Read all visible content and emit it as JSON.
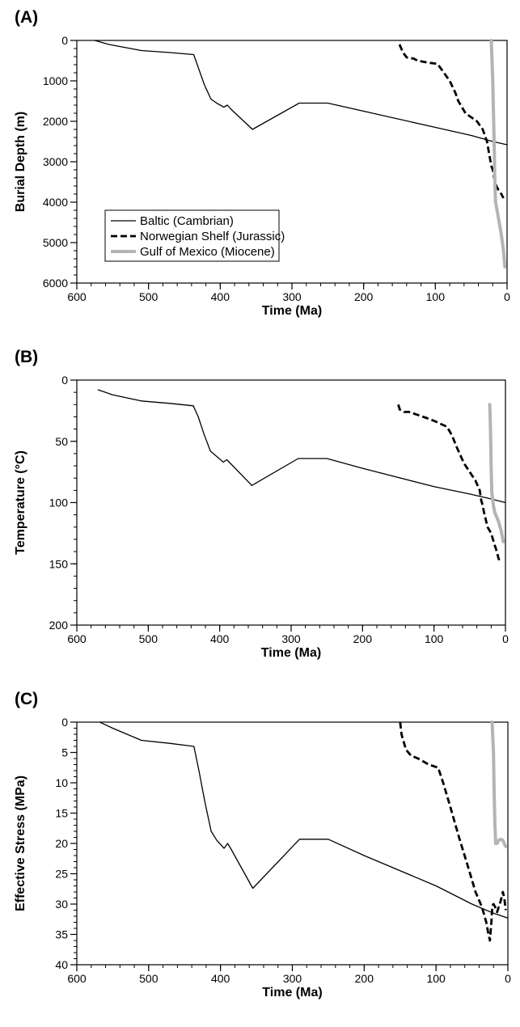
{
  "chart_data": [
    {
      "type": "line",
      "panel_label": "(A)",
      "xlabel": "Time (Ma)",
      "ylabel": "Burial Depth (m)",
      "xlim": [
        600,
        0
      ],
      "ylim": [
        6000,
        0
      ],
      "x_reversed": true,
      "y_reversed": true,
      "xticks": [
        600,
        500,
        400,
        300,
        200,
        100,
        0
      ],
      "yticks": [
        0,
        1000,
        2000,
        3000,
        4000,
        5000,
        6000
      ],
      "x_minor_step": 20,
      "y_minor_step": 200,
      "legend": {
        "position": "lower-left",
        "entries": [
          "Baltic (Cambrian)",
          "Norwegian Shelf (Jurassic)",
          "Gulf of Mexico (Miocene)"
        ]
      },
      "series": [
        {
          "name": "Baltic (Cambrian)",
          "color": "#000000",
          "style": "solid",
          "x": [
            575,
            555,
            510,
            470,
            437,
            430,
            422,
            413,
            405,
            395,
            390,
            385,
            355,
            290,
            250,
            200,
            100,
            50,
            20,
            0
          ],
          "y": [
            0,
            100,
            250,
            300,
            350,
            700,
            1100,
            1450,
            1550,
            1650,
            1600,
            1700,
            2200,
            1550,
            1550,
            1750,
            2150,
            2350,
            2500,
            2580
          ]
        },
        {
          "name": "Norwegian Shelf (Jurassic)",
          "color": "#000000",
          "style": "dashed",
          "x": [
            150,
            145,
            140,
            130,
            125,
            110,
            97,
            90,
            80,
            72,
            68,
            58,
            50,
            42,
            34,
            28,
            25,
            22,
            20,
            18,
            15,
            12,
            8,
            5
          ],
          "y": [
            100,
            300,
            420,
            450,
            500,
            550,
            580,
            750,
            1000,
            1300,
            1500,
            1800,
            1900,
            2000,
            2200,
            2500,
            2800,
            3100,
            3200,
            3400,
            3600,
            3700,
            3800,
            3900
          ]
        },
        {
          "name": "Gulf of Mexico (Miocene)",
          "color": "#b4b4b4",
          "style": "solid",
          "x": [
            22,
            20,
            18,
            17,
            16,
            12,
            8,
            5,
            3
          ],
          "y": [
            0,
            1000,
            2500,
            3500,
            4000,
            4400,
            4800,
            5200,
            5600
          ]
        }
      ]
    },
    {
      "type": "line",
      "panel_label": "(B)",
      "xlabel": "Time (Ma)",
      "ylabel": "Temperature (°C)",
      "xlim": [
        600,
        0
      ],
      "ylim": [
        200,
        0
      ],
      "x_reversed": true,
      "y_reversed": true,
      "xticks": [
        600,
        500,
        400,
        300,
        200,
        100,
        0
      ],
      "yticks": [
        0,
        50,
        100,
        150,
        200
      ],
      "x_minor_step": 20,
      "y_minor_step": 10,
      "series": [
        {
          "name": "Baltic (Cambrian)",
          "color": "#000000",
          "style": "solid",
          "x": [
            570,
            550,
            510,
            470,
            437,
            430,
            422,
            413,
            405,
            395,
            390,
            385,
            355,
            290,
            250,
            200,
            100,
            50,
            20,
            0
          ],
          "y": [
            8,
            12,
            17,
            19,
            21,
            30,
            44,
            58,
            62,
            67,
            65,
            68,
            86,
            64,
            64,
            72,
            87,
            93,
            97,
            100
          ]
        },
        {
          "name": "Norwegian Shelf (Jurassic)",
          "color": "#000000",
          "style": "dashed",
          "x": [
            150,
            148,
            142,
            135,
            125,
            110,
            97,
            90,
            82,
            75,
            68,
            58,
            50,
            42,
            36,
            34,
            32,
            30,
            25,
            20,
            15,
            12,
            10,
            8
          ],
          "y": [
            20,
            24,
            26,
            26,
            28,
            31,
            34,
            36,
            38,
            45,
            55,
            68,
            75,
            82,
            90,
            98,
            102,
            108,
            120,
            125,
            135,
            140,
            145,
            148
          ]
        },
        {
          "name": "Gulf of Mexico (Miocene)",
          "color": "#b4b4b4",
          "style": "solid",
          "x": [
            22,
            21,
            20,
            19,
            17,
            15,
            10,
            6,
            3
          ],
          "y": [
            20,
            40,
            70,
            92,
            102,
            108,
            115,
            123,
            132
          ]
        }
      ]
    },
    {
      "type": "line",
      "panel_label": "(C)",
      "xlabel": "Time (Ma)",
      "ylabel": "Effective Stress (MPa)",
      "xlim": [
        600,
        0
      ],
      "ylim": [
        40,
        0
      ],
      "x_reversed": true,
      "y_reversed": true,
      "xticks": [
        600,
        500,
        400,
        300,
        200,
        100,
        0
      ],
      "yticks": [
        0,
        5,
        10,
        15,
        20,
        25,
        30,
        35,
        40
      ],
      "x_minor_step": 20,
      "y_minor_step": 1,
      "series": [
        {
          "name": "Baltic (Cambrian)",
          "color": "#000000",
          "style": "solid",
          "x": [
            568,
            550,
            510,
            470,
            437,
            430,
            422,
            413,
            405,
            395,
            390,
            385,
            355,
            290,
            250,
            200,
            100,
            50,
            20,
            0
          ],
          "y": [
            0,
            1,
            3,
            3.5,
            4,
            8,
            13,
            18,
            19.5,
            20.8,
            20,
            21,
            27.4,
            19.3,
            19.3,
            22,
            27,
            30,
            31.5,
            32.3
          ]
        },
        {
          "name": "Norwegian Shelf (Jurassic)",
          "color": "#000000",
          "style": "dashed",
          "x": [
            150,
            148,
            142,
            135,
            125,
            110,
            97,
            90,
            80,
            68,
            55,
            45,
            36,
            30,
            27,
            25,
            23,
            22,
            21,
            20,
            18,
            15,
            10,
            7,
            5,
            3
          ],
          "y": [
            0,
            2,
            4.5,
            5.5,
            6,
            7,
            7.5,
            10,
            14,
            19,
            24,
            28,
            30.5,
            33,
            35,
            36,
            33,
            31,
            30.2,
            30,
            30.4,
            31.3,
            29.5,
            28,
            29,
            31
          ]
        },
        {
          "name": "Gulf of Mexico (Miocene)",
          "color": "#b4b4b4",
          "style": "solid",
          "x": [
            22,
            20,
            19,
            18,
            17,
            15,
            13,
            10,
            7,
            3
          ],
          "y": [
            0,
            5,
            12,
            17,
            20,
            20,
            19.5,
            19.3,
            19.5,
            20.5
          ]
        }
      ]
    }
  ]
}
